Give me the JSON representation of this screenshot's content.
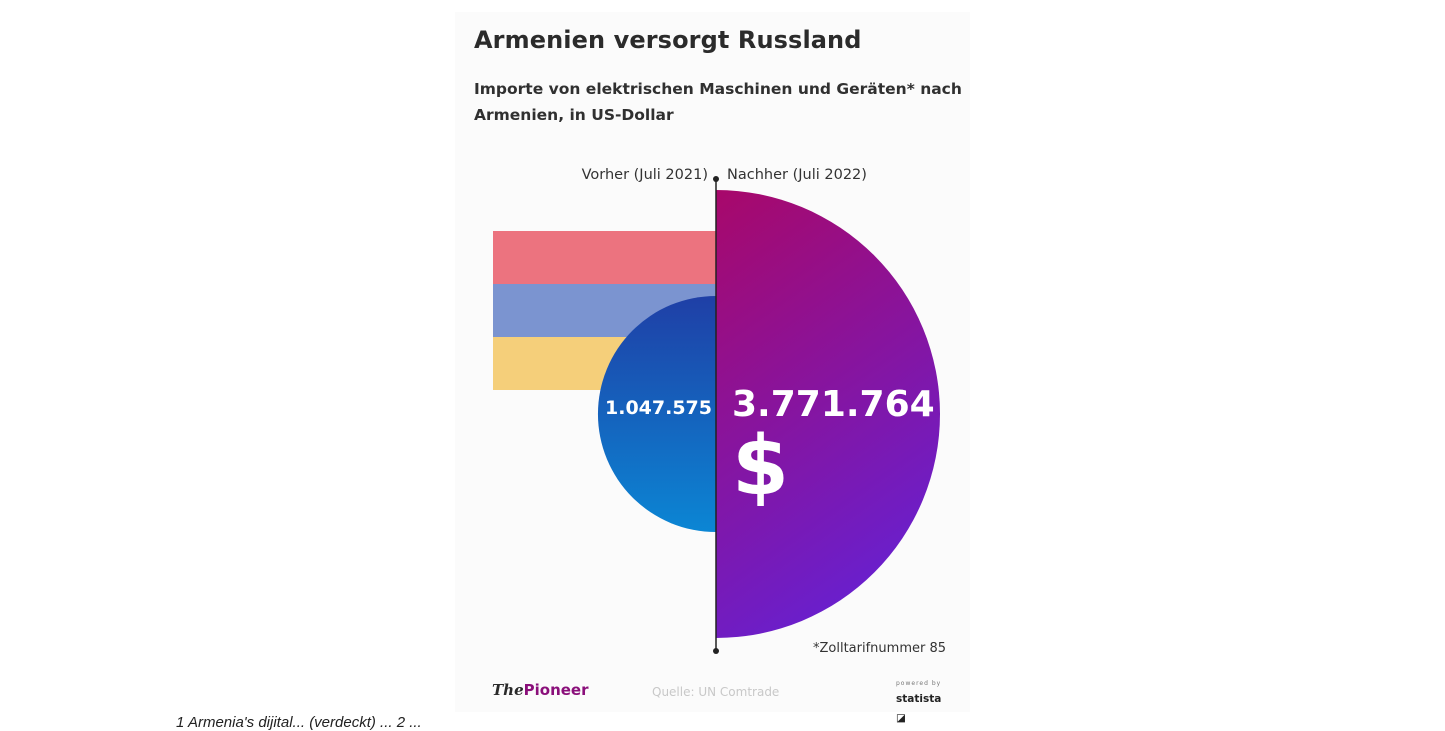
{
  "title": "Armenien versorgt Russland",
  "subtitle": "Importe von elektrischen Maschinen und Geräten* nach Armenien, in US-Dollar",
  "footnote": "*Zolltarifnummer 85",
  "brand_prefix": "The",
  "brand_name": "Pioneer",
  "source": "Quelle: UN Comtrade",
  "powered_by": "powered by",
  "statista": "statista",
  "caption": "1 Armenia's dijital... (verdeckt) ... 2 ...",
  "currency_symbol": "$",
  "flag_colors": [
    "#ec737f",
    "#7b94d0",
    "#f5cf7a"
  ],
  "chart_data": {
    "type": "half-circle comparison",
    "unit": "US-Dollar",
    "series": [
      {
        "name": "Vorher (Juli 2021)",
        "value": 1047575,
        "label": "1.047.575",
        "colors": [
          "#1f3fa6",
          "#0b86d4"
        ]
      },
      {
        "name": "Nachher (Juli 2022)",
        "value": 3771764,
        "label": "3.771.764",
        "colors": [
          "#a8086a",
          "#6a1fcc"
        ]
      }
    ]
  }
}
